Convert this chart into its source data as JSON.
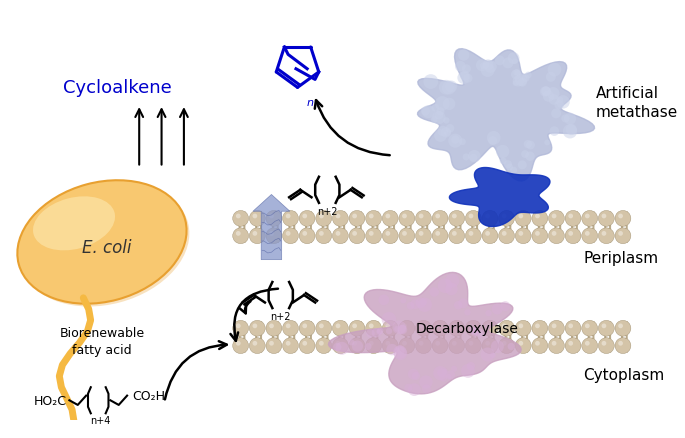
{
  "background_color": "#ffffff",
  "ecoli_fill": "#f5b942",
  "ecoli_edge": "#e8a030",
  "membrane_bead_color": "#d4c4a8",
  "membrane_tail_color": "#b8a888",
  "metathase_color": "#b0b8d8",
  "metathase_anchor_color": "#2233aa",
  "decarboxylase_color": "#c8a0c0",
  "channel_color": "#8898cc",
  "cycloalkene_color": "#0000cc",
  "arrow_color": "#111111",
  "text_color": "#111111",
  "figsize": [
    6.85,
    4.39
  ],
  "dpi": 100,
  "labels": {
    "cycloalkene": "Cycloalkene",
    "ecoli": "E. coli",
    "biorenewable": "Biorenewable\nfatty acid",
    "periplasm": "Periplasm",
    "cytoplasm": "Cytoplasm",
    "decarboxylase": "Decarboxylase",
    "artificial_metathase_1": "Artificial",
    "artificial_metathase_2": "metathase"
  }
}
